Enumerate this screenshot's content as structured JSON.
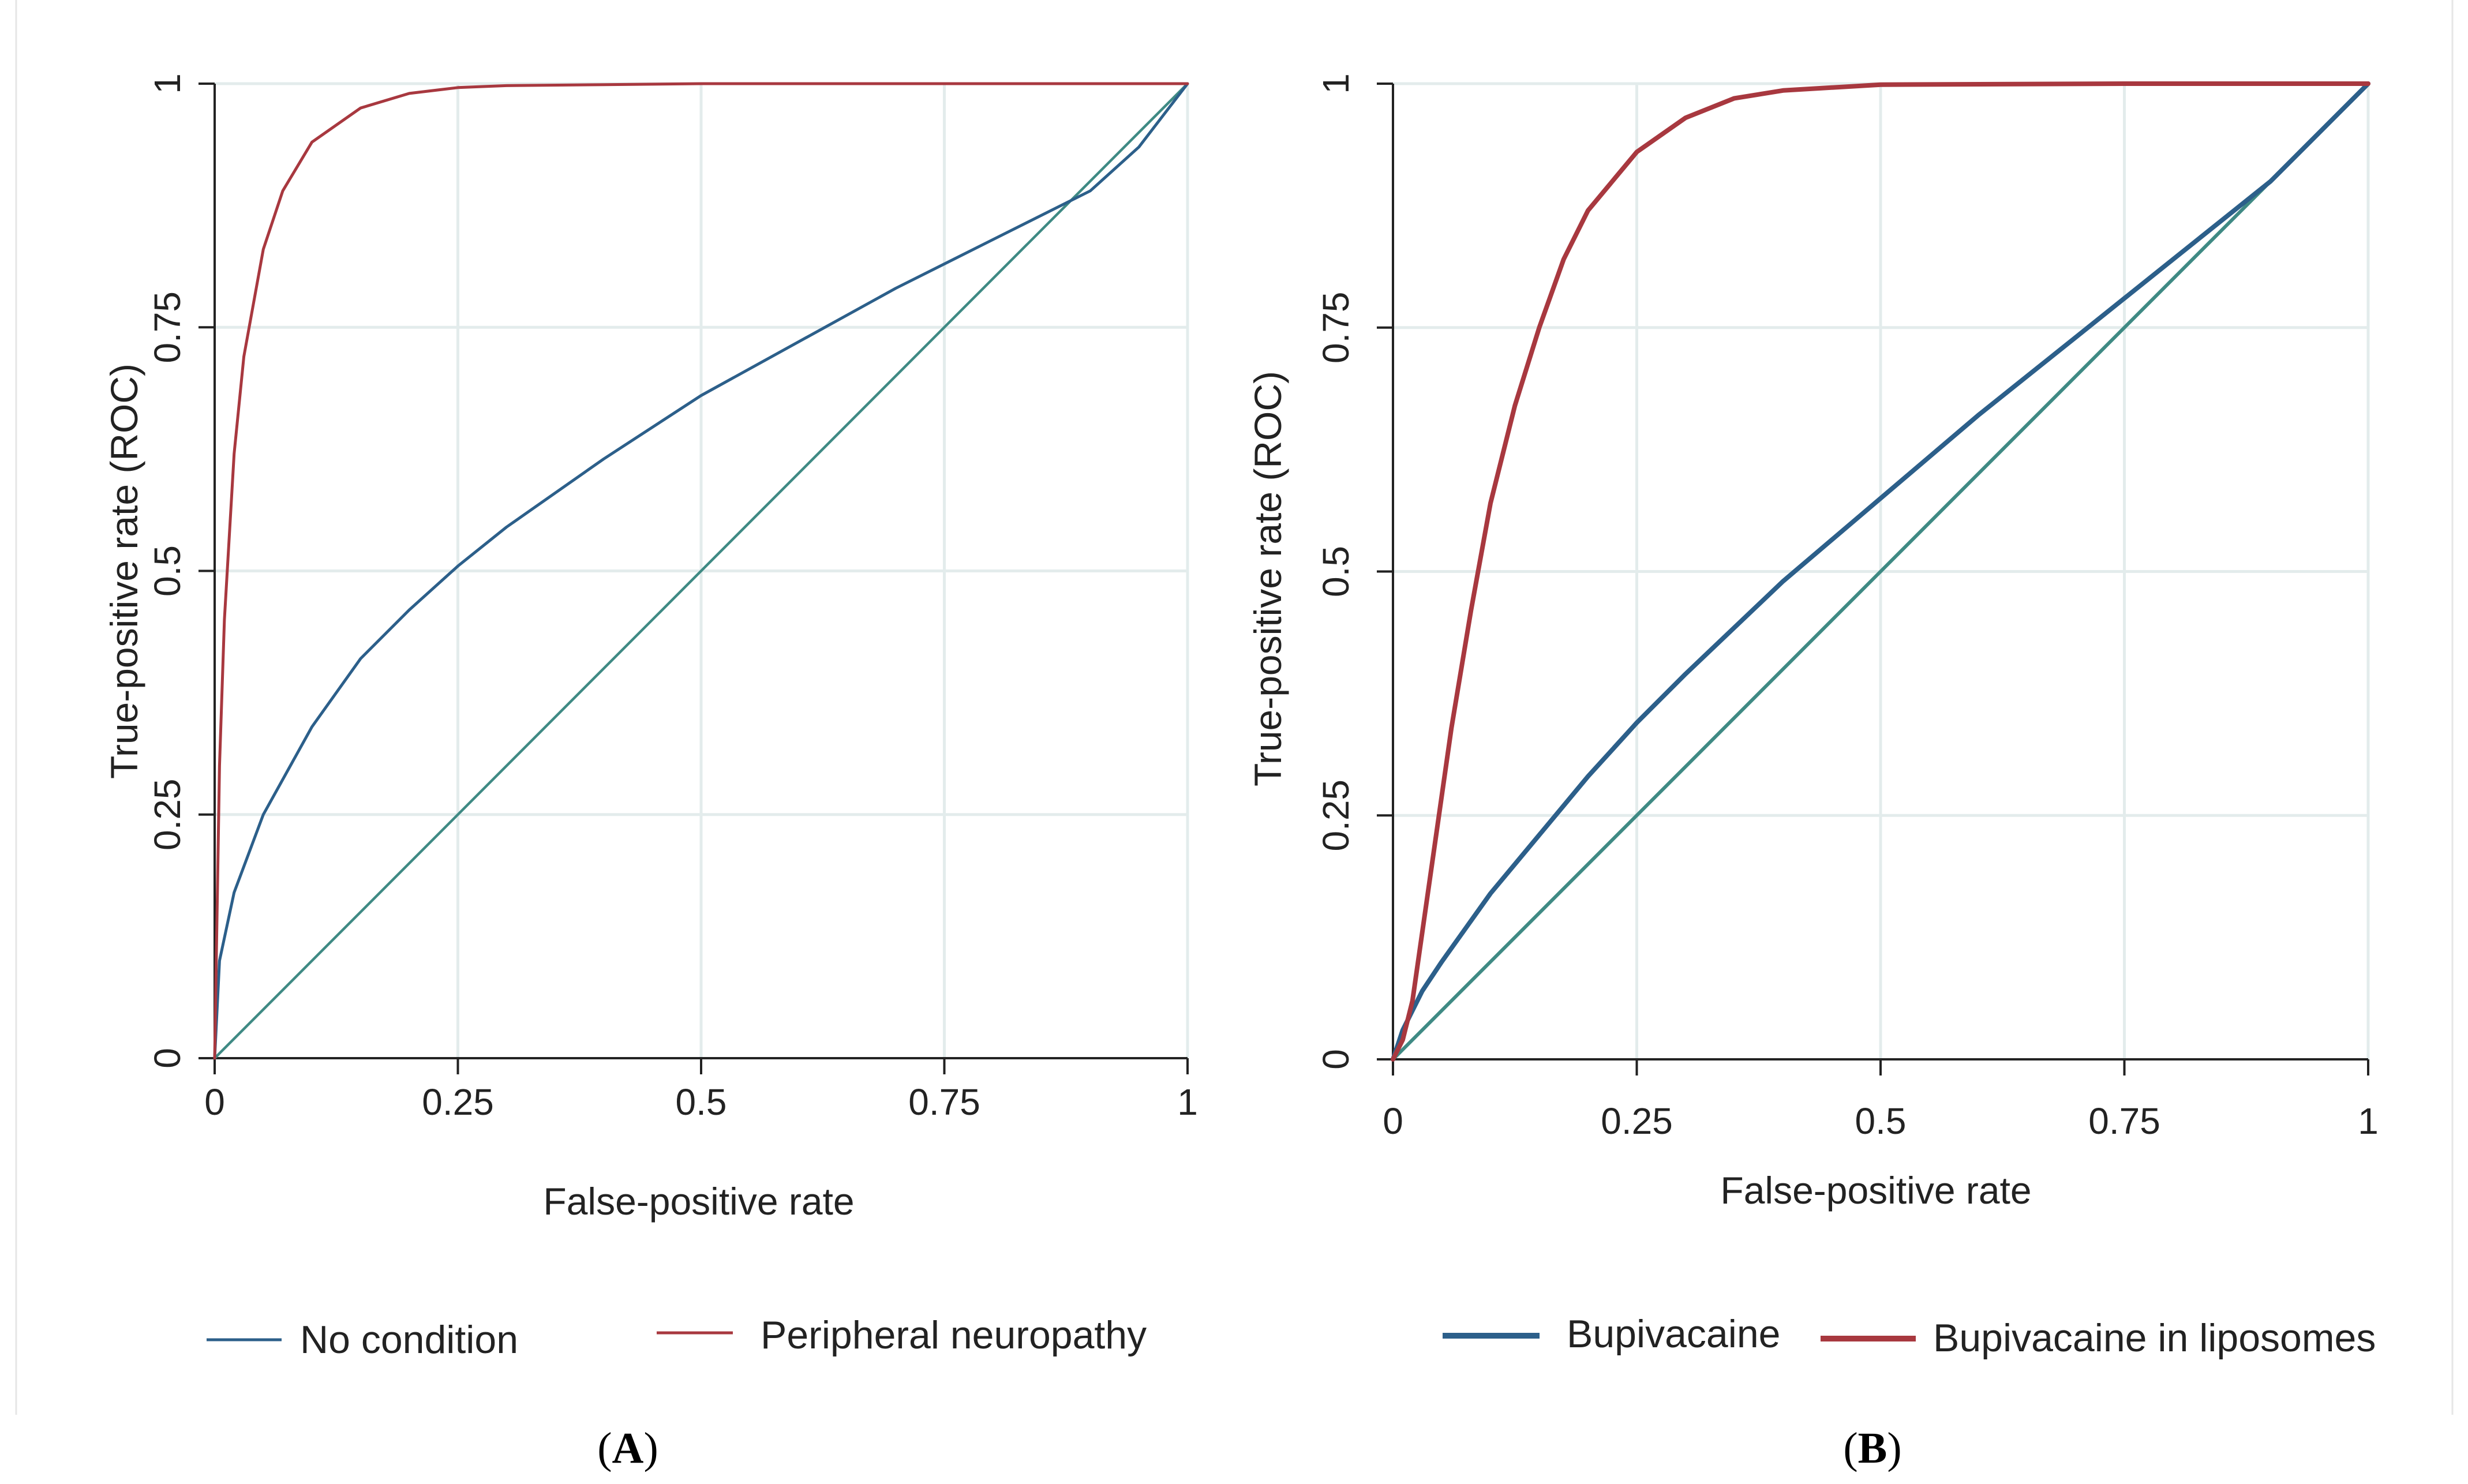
{
  "colors": {
    "grid": "#e3ecec",
    "axis": "#222222",
    "frame": "#e6e6e6",
    "blue": "#2c5f8a",
    "red": "#a8383f",
    "teal": "#3f8a84"
  },
  "chart_data": [
    {
      "type": "line",
      "panel": "A",
      "panel_label": {
        "open": "(",
        "letter": "A",
        "close": ")"
      },
      "xlabel": "False-positive rate",
      "ylabel": "True-positive rate (ROC)",
      "xlim": [
        0,
        1
      ],
      "ylim": [
        0,
        1
      ],
      "xticks": [
        {
          "value": 0,
          "label": "0"
        },
        {
          "value": 0.25,
          "label": "0.25"
        },
        {
          "value": 0.5,
          "label": "0.5"
        },
        {
          "value": 0.75,
          "label": "0.75"
        },
        {
          "value": 1,
          "label": "1"
        }
      ],
      "yticks": [
        {
          "value": 0,
          "label": "0"
        },
        {
          "value": 0.25,
          "label": "0.25"
        },
        {
          "value": 0.5,
          "label": "0.5"
        },
        {
          "value": 0.75,
          "label": "0.75"
        },
        {
          "value": 1,
          "label": "1"
        }
      ],
      "grid": true,
      "legend_position": "bottom",
      "series": [
        {
          "name": "No condition",
          "color_key": "blue",
          "in_legend": true,
          "x": [
            0,
            0.005,
            0.02,
            0.05,
            0.1,
            0.15,
            0.2,
            0.25,
            0.3,
            0.4,
            0.5,
            0.6,
            0.7,
            0.8,
            0.9,
            0.95,
            1
          ],
          "y": [
            0,
            0.1,
            0.17,
            0.25,
            0.34,
            0.41,
            0.46,
            0.505,
            0.545,
            0.615,
            0.68,
            0.735,
            0.79,
            0.84,
            0.89,
            0.935,
            1
          ]
        },
        {
          "name": "Peripheral neuropathy",
          "color_key": "red",
          "in_legend": true,
          "x": [
            0,
            0.005,
            0.01,
            0.02,
            0.03,
            0.05,
            0.07,
            0.1,
            0.15,
            0.2,
            0.25,
            0.3,
            0.4,
            0.5,
            0.75,
            1
          ],
          "y": [
            0,
            0.3,
            0.45,
            0.62,
            0.72,
            0.83,
            0.89,
            0.94,
            0.975,
            0.99,
            0.996,
            0.998,
            0.999,
            1,
            1,
            1
          ]
        },
        {
          "name": "Reference line",
          "color_key": "teal",
          "in_legend": false,
          "x": [
            0,
            1
          ],
          "y": [
            0,
            1
          ]
        }
      ]
    },
    {
      "type": "line",
      "panel": "B",
      "panel_label": {
        "open": "(",
        "letter": "B",
        "close": ")"
      },
      "xlabel": "False-positive rate",
      "ylabel": "True-positive rate (ROC)",
      "xlim": [
        0,
        1
      ],
      "ylim": [
        0,
        1
      ],
      "xticks": [
        {
          "value": 0,
          "label": "0"
        },
        {
          "value": 0.25,
          "label": "0.25"
        },
        {
          "value": 0.5,
          "label": "0.5"
        },
        {
          "value": 0.75,
          "label": "0.75"
        },
        {
          "value": 1,
          "label": "1"
        }
      ],
      "yticks": [
        {
          "value": 0,
          "label": "0"
        },
        {
          "value": 0.25,
          "label": "0.25"
        },
        {
          "value": 0.5,
          "label": "0.5"
        },
        {
          "value": 0.75,
          "label": "0.75"
        },
        {
          "value": 1,
          "label": "1"
        }
      ],
      "grid": true,
      "legend_position": "bottom",
      "series": [
        {
          "name": "Bupivacaine",
          "color_key": "blue",
          "in_legend": true,
          "x": [
            0,
            0.01,
            0.03,
            0.05,
            0.1,
            0.15,
            0.2,
            0.25,
            0.3,
            0.4,
            0.5,
            0.6,
            0.7,
            0.8,
            0.9,
            1
          ],
          "y": [
            0,
            0.03,
            0.07,
            0.1,
            0.17,
            0.23,
            0.29,
            0.345,
            0.395,
            0.49,
            0.575,
            0.66,
            0.74,
            0.82,
            0.9,
            1
          ]
        },
        {
          "name": "Bupivacaine in liposomes",
          "color_key": "red",
          "in_legend": true,
          "x": [
            0,
            0.01,
            0.02,
            0.04,
            0.06,
            0.08,
            0.1,
            0.125,
            0.15,
            0.175,
            0.2,
            0.25,
            0.3,
            0.35,
            0.4,
            0.5,
            0.75,
            1
          ],
          "y": [
            0,
            0.02,
            0.06,
            0.2,
            0.34,
            0.46,
            0.57,
            0.67,
            0.75,
            0.82,
            0.87,
            0.93,
            0.965,
            0.985,
            0.993,
            0.999,
            1,
            1
          ]
        },
        {
          "name": "Reference line",
          "color_key": "teal",
          "in_legend": false,
          "x": [
            0,
            1
          ],
          "y": [
            0,
            1
          ]
        }
      ]
    }
  ]
}
